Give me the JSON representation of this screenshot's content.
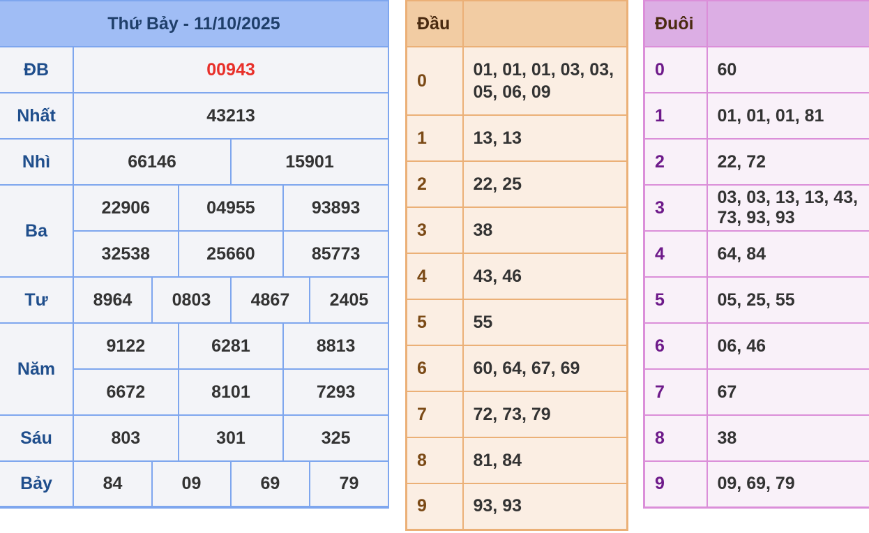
{
  "results": {
    "title": "Thứ Bảy - 11/10/2025",
    "rows": [
      {
        "label": "ĐB",
        "values": [
          "00943"
        ]
      },
      {
        "label": "Nhất",
        "values": [
          "43213"
        ]
      },
      {
        "label": "Nhì",
        "values": [
          "66146",
          "15901"
        ]
      },
      {
        "label": "Ba",
        "values": [
          "22906",
          "04955",
          "93893",
          "32538",
          "25660",
          "85773"
        ]
      },
      {
        "label": "Tư",
        "values": [
          "8964",
          "0803",
          "4867",
          "2405"
        ]
      },
      {
        "label": "Năm",
        "values": [
          "9122",
          "6281",
          "8813",
          "6672",
          "8101",
          "7293"
        ]
      },
      {
        "label": "Sáu",
        "values": [
          "803",
          "301",
          "325"
        ]
      },
      {
        "label": "Bảy",
        "values": [
          "84",
          "09",
          "69",
          "79"
        ]
      }
    ],
    "special_color": "#e8302a"
  },
  "dau": {
    "header": "Đầu",
    "rows": [
      {
        "k": "0",
        "v": "01, 01, 01, 03, 03, 05, 06, 09"
      },
      {
        "k": "1",
        "v": "13, 13"
      },
      {
        "k": "2",
        "v": "22, 25"
      },
      {
        "k": "3",
        "v": "38"
      },
      {
        "k": "4",
        "v": "43, 46"
      },
      {
        "k": "5",
        "v": "55"
      },
      {
        "k": "6",
        "v": "60, 64, 67, 69"
      },
      {
        "k": "7",
        "v": "72, 73, 79"
      },
      {
        "k": "8",
        "v": "81, 84"
      },
      {
        "k": "9",
        "v": "93, 93"
      }
    ]
  },
  "duoi": {
    "header": "Đuôi",
    "rows": [
      {
        "k": "0",
        "v": "60"
      },
      {
        "k": "1",
        "v": "01, 01, 01, 81"
      },
      {
        "k": "2",
        "v": "22, 72"
      },
      {
        "k": "3",
        "v": "03, 03, 13, 13, 43, 73, 93, 93"
      },
      {
        "k": "4",
        "v": "64, 84"
      },
      {
        "k": "5",
        "v": "05, 25, 55"
      },
      {
        "k": "6",
        "v": "06, 46"
      },
      {
        "k": "7",
        "v": "67"
      },
      {
        "k": "8",
        "v": "38"
      },
      {
        "k": "9",
        "v": "09, 69, 79"
      }
    ]
  }
}
